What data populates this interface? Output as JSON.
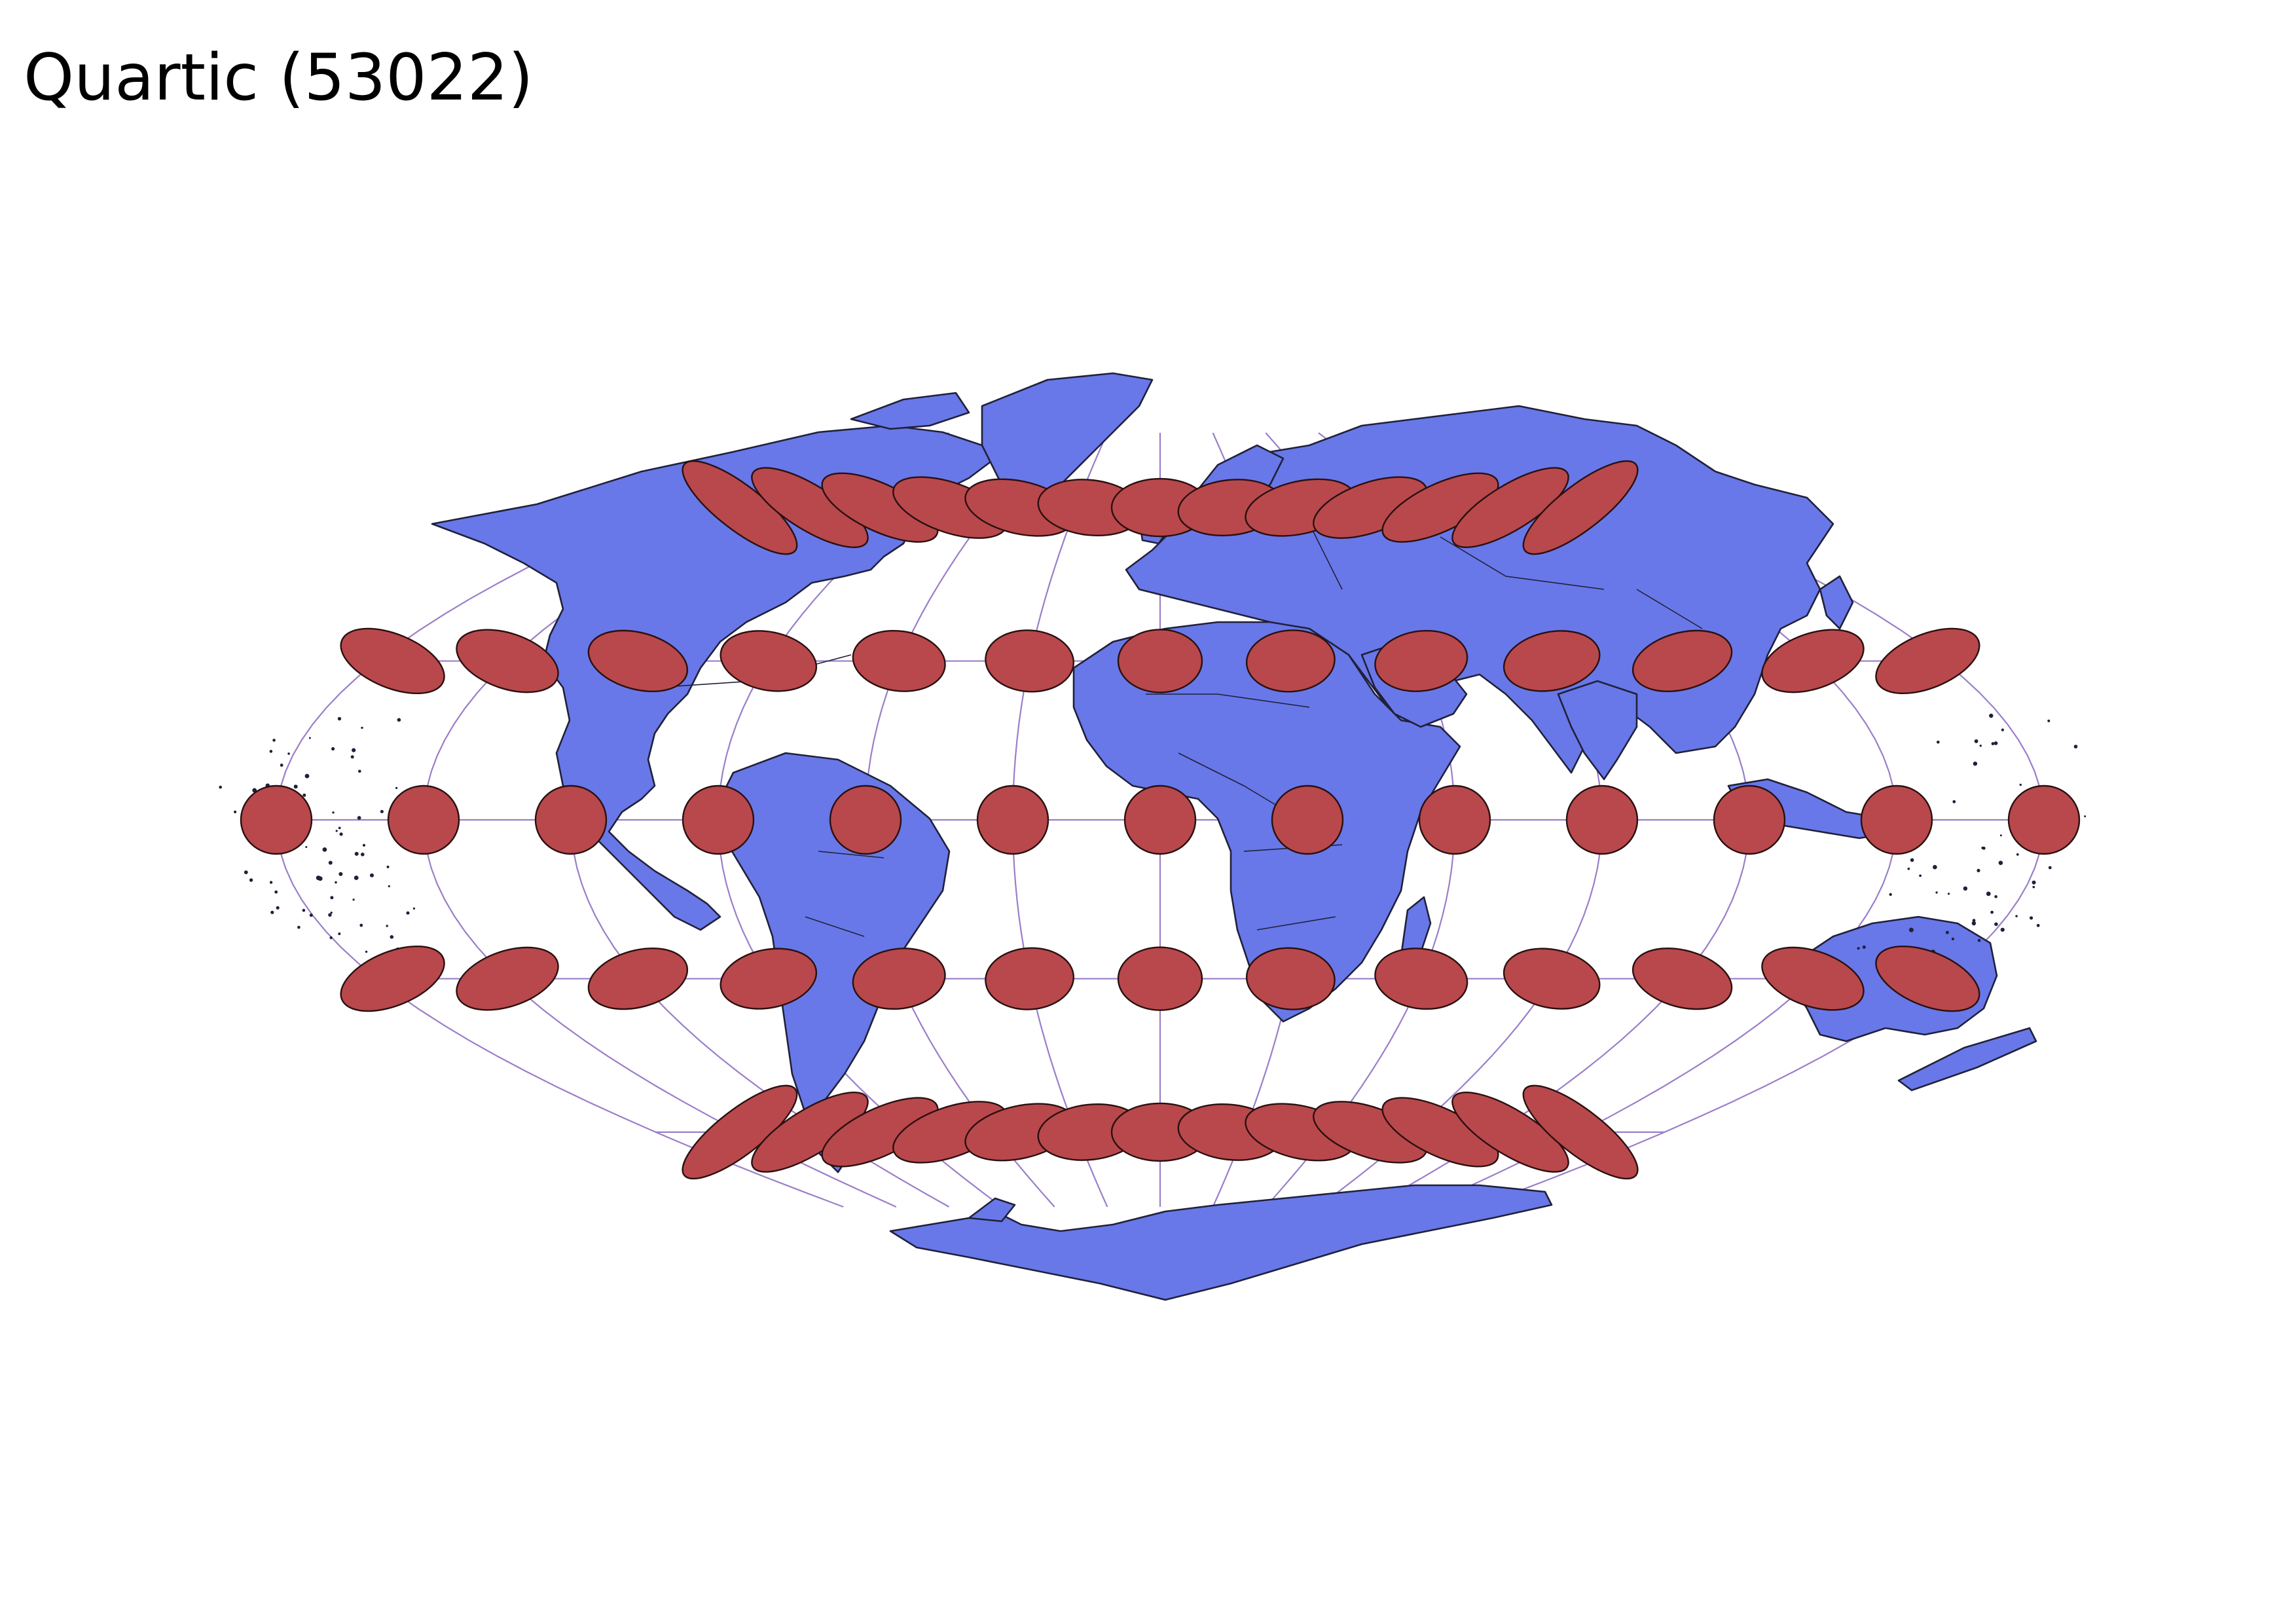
{
  "title": "Quartic (53022)",
  "colors": {
    "land": "#6878e8",
    "coastline": "#20203a",
    "graticule": "#9a7ec8",
    "tissot": "#b8484c",
    "background": "#ffffff"
  },
  "graticule": {
    "meridians_deg": [
      -180,
      -150,
      -120,
      -90,
      -60,
      -30,
      0,
      30,
      60,
      90,
      120,
      150,
      180
    ],
    "parallels_deg": [
      -60,
      -30,
      0,
      30,
      60
    ]
  },
  "tissot": {
    "latitudes_deg": [
      -60,
      -30,
      0,
      30,
      60
    ],
    "longitudes_deg": [
      -180,
      -150,
      -120,
      -90,
      -60,
      -30,
      0,
      30,
      60,
      90,
      120,
      150,
      180
    ],
    "latitudes_high_deg": [
      -60,
      60
    ],
    "longitudes_high_deg": [
      -150,
      -125,
      -100,
      -75,
      -50,
      -25,
      0,
      25,
      50,
      75,
      100,
      125,
      150
    ]
  }
}
